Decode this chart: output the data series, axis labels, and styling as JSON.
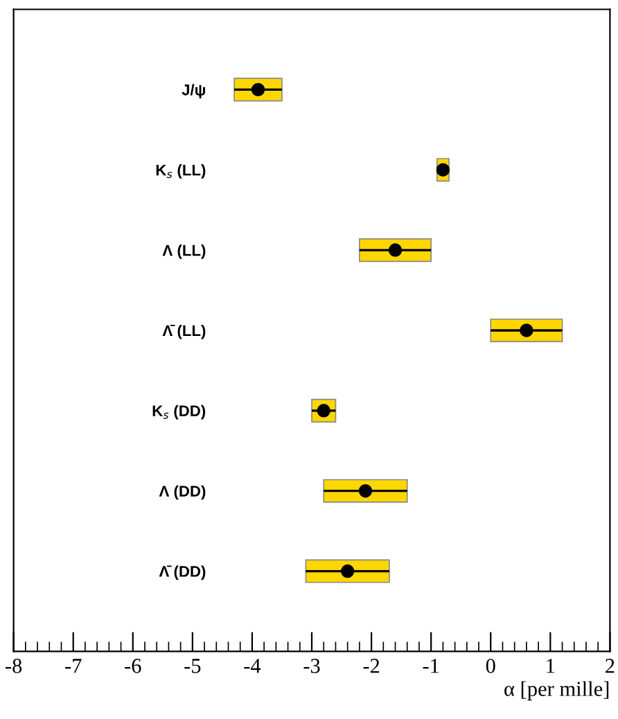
{
  "chart_data": {
    "type": "scatter",
    "orientation": "horizontal",
    "xlabel": "α [per mille]",
    "categories": [
      "J/ψ",
      "K$_{s}$ (LL)",
      "Λ (LL)",
      "Λ̄ (LL)",
      "K$_{s}$ (DD)",
      "Λ (DD)",
      "Λ̄ (DD)"
    ],
    "series": [
      {
        "type": "bar",
        "color": "#ffd700",
        "base": [
          -4.3,
          -0.9,
          -2.2,
          0.0,
          -3.0,
          -2.8,
          -3.1
        ],
        "values": [
          0.8,
          0.2,
          1.2,
          1.2,
          0.4,
          1.4,
          1.4
        ]
      },
      {
        "color": "#000000",
        "values": [
          -3.9,
          -0.8,
          -1.6,
          0.6,
          -2.8,
          -2.1,
          -2.4
        ],
        "errors": [
          0.4,
          0.1,
          0.6,
          0.6,
          0.2,
          0.7,
          0.7
        ]
      }
    ],
    "xlim": [
      -8,
      2
    ],
    "xticks": [
      -8,
      -7,
      -6,
      -5,
      -4,
      -3,
      -2,
      -1,
      0,
      1,
      2
    ],
    "grid": false,
    "marker": "circle"
  }
}
